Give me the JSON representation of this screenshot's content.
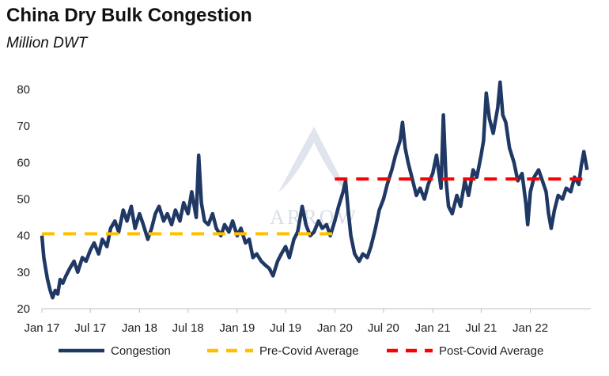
{
  "title": "China Dry Bulk Congestion",
  "subtitle": "Million DWT",
  "watermark_text": "ARROW",
  "colors": {
    "congestion": "#1f3864",
    "pre_covid": "#ffc000",
    "post_covid": "#ff0000",
    "axis": "#bfbfbf",
    "watermark": "#b7c4d6"
  },
  "chart_data": {
    "type": "line",
    "title": "China Dry Bulk Congestion",
    "subtitle": "Million DWT",
    "ylim": [
      20,
      85
    ],
    "yticks": [
      20,
      30,
      40,
      50,
      60,
      70,
      80
    ],
    "xlim": [
      "2017-01-01",
      "2022-08-15"
    ],
    "xticks": [
      {
        "date": "2017-01-01",
        "label": "Jan 17"
      },
      {
        "date": "2017-07-01",
        "label": "Jul 17"
      },
      {
        "date": "2018-01-01",
        "label": "Jan 18"
      },
      {
        "date": "2018-07-01",
        "label": "Jul 18"
      },
      {
        "date": "2019-01-01",
        "label": "Jan 19"
      },
      {
        "date": "2019-07-01",
        "label": "Jul 19"
      },
      {
        "date": "2020-01-01",
        "label": "Jan 20"
      },
      {
        "date": "2020-07-01",
        "label": "Jul 20"
      },
      {
        "date": "2021-01-01",
        "label": "Jan 21"
      },
      {
        "date": "2021-07-01",
        "label": "Jul 21"
      },
      {
        "date": "2022-01-01",
        "label": "Jan 22"
      }
    ],
    "grid": false,
    "legend_position": "bottom",
    "series": [
      {
        "name": "Congestion",
        "style": "solid",
        "points": [
          [
            "2017-01-01",
            40
          ],
          [
            "2017-01-08",
            34
          ],
          [
            "2017-01-15",
            31
          ],
          [
            "2017-01-22",
            28
          ],
          [
            "2017-02-01",
            25
          ],
          [
            "2017-02-10",
            23
          ],
          [
            "2017-02-20",
            25
          ],
          [
            "2017-03-01",
            24
          ],
          [
            "2017-03-10",
            28
          ],
          [
            "2017-03-20",
            27
          ],
          [
            "2017-04-01",
            29
          ],
          [
            "2017-04-15",
            31
          ],
          [
            "2017-05-01",
            33
          ],
          [
            "2017-05-15",
            30
          ],
          [
            "2017-06-01",
            34
          ],
          [
            "2017-06-15",
            33
          ],
          [
            "2017-07-01",
            36
          ],
          [
            "2017-07-15",
            38
          ],
          [
            "2017-08-01",
            35
          ],
          [
            "2017-08-15",
            39
          ],
          [
            "2017-09-01",
            37
          ],
          [
            "2017-09-15",
            42
          ],
          [
            "2017-10-01",
            44
          ],
          [
            "2017-10-15",
            41
          ],
          [
            "2017-11-01",
            47
          ],
          [
            "2017-11-15",
            44
          ],
          [
            "2017-12-01",
            48
          ],
          [
            "2017-12-15",
            42
          ],
          [
            "2018-01-01",
            46
          ],
          [
            "2018-01-15",
            43
          ],
          [
            "2018-02-01",
            39
          ],
          [
            "2018-02-15",
            42
          ],
          [
            "2018-03-01",
            46
          ],
          [
            "2018-03-15",
            48
          ],
          [
            "2018-04-01",
            44
          ],
          [
            "2018-04-15",
            46
          ],
          [
            "2018-05-01",
            43
          ],
          [
            "2018-05-15",
            47
          ],
          [
            "2018-06-01",
            44
          ],
          [
            "2018-06-15",
            49
          ],
          [
            "2018-07-01",
            46
          ],
          [
            "2018-07-15",
            52
          ],
          [
            "2018-08-01",
            45
          ],
          [
            "2018-08-10",
            62
          ],
          [
            "2018-08-20",
            49
          ],
          [
            "2018-09-01",
            44
          ],
          [
            "2018-09-15",
            43
          ],
          [
            "2018-10-01",
            46
          ],
          [
            "2018-10-15",
            42
          ],
          [
            "2018-11-01",
            40
          ],
          [
            "2018-11-15",
            43
          ],
          [
            "2018-12-01",
            41
          ],
          [
            "2018-12-15",
            44
          ],
          [
            "2019-01-01",
            40
          ],
          [
            "2019-01-15",
            42
          ],
          [
            "2019-02-01",
            38
          ],
          [
            "2019-02-15",
            39
          ],
          [
            "2019-03-01",
            34
          ],
          [
            "2019-03-15",
            35
          ],
          [
            "2019-04-01",
            33
          ],
          [
            "2019-04-15",
            32
          ],
          [
            "2019-05-01",
            31
          ],
          [
            "2019-05-15",
            29
          ],
          [
            "2019-06-01",
            33
          ],
          [
            "2019-06-15",
            35
          ],
          [
            "2019-07-01",
            37
          ],
          [
            "2019-07-15",
            34
          ],
          [
            "2019-08-01",
            39
          ],
          [
            "2019-08-15",
            41
          ],
          [
            "2019-09-01",
            48
          ],
          [
            "2019-09-15",
            43
          ],
          [
            "2019-10-01",
            40
          ],
          [
            "2019-10-15",
            41
          ],
          [
            "2019-11-01",
            44
          ],
          [
            "2019-11-15",
            42
          ],
          [
            "2019-12-01",
            43
          ],
          [
            "2019-12-15",
            40
          ],
          [
            "2020-01-01",
            44
          ],
          [
            "2020-01-15",
            48
          ],
          [
            "2020-02-01",
            52
          ],
          [
            "2020-02-10",
            55
          ],
          [
            "2020-02-20",
            47
          ],
          [
            "2020-03-01",
            40
          ],
          [
            "2020-03-15",
            35
          ],
          [
            "2020-04-01",
            33
          ],
          [
            "2020-04-15",
            35
          ],
          [
            "2020-05-01",
            34
          ],
          [
            "2020-05-15",
            37
          ],
          [
            "2020-06-01",
            42
          ],
          [
            "2020-06-15",
            47
          ],
          [
            "2020-07-01",
            50
          ],
          [
            "2020-07-15",
            54
          ],
          [
            "2020-08-01",
            58
          ],
          [
            "2020-08-15",
            62
          ],
          [
            "2020-09-01",
            66
          ],
          [
            "2020-09-10",
            71
          ],
          [
            "2020-09-20",
            64
          ],
          [
            "2020-10-01",
            60
          ],
          [
            "2020-10-15",
            56
          ],
          [
            "2020-11-01",
            51
          ],
          [
            "2020-11-15",
            53
          ],
          [
            "2020-12-01",
            50
          ],
          [
            "2020-12-15",
            54
          ],
          [
            "2021-01-01",
            57
          ],
          [
            "2021-01-15",
            62
          ],
          [
            "2021-02-01",
            53
          ],
          [
            "2021-02-10",
            73
          ],
          [
            "2021-02-20",
            55
          ],
          [
            "2021-03-01",
            48
          ],
          [
            "2021-03-15",
            46
          ],
          [
            "2021-04-01",
            51
          ],
          [
            "2021-04-15",
            48
          ],
          [
            "2021-05-01",
            55
          ],
          [
            "2021-05-15",
            51
          ],
          [
            "2021-06-01",
            58
          ],
          [
            "2021-06-15",
            56
          ],
          [
            "2021-07-01",
            62
          ],
          [
            "2021-07-10",
            66
          ],
          [
            "2021-07-20",
            79
          ],
          [
            "2021-08-01",
            72
          ],
          [
            "2021-08-15",
            68
          ],
          [
            "2021-09-01",
            75
          ],
          [
            "2021-09-10",
            82
          ],
          [
            "2021-09-20",
            73
          ],
          [
            "2021-10-01",
            71
          ],
          [
            "2021-10-15",
            64
          ],
          [
            "2021-11-01",
            60
          ],
          [
            "2021-11-15",
            55
          ],
          [
            "2021-12-01",
            57
          ],
          [
            "2021-12-15",
            49
          ],
          [
            "2021-12-22",
            43
          ],
          [
            "2022-01-01",
            52
          ],
          [
            "2022-01-15",
            56
          ],
          [
            "2022-02-01",
            58
          ],
          [
            "2022-02-15",
            55
          ],
          [
            "2022-03-01",
            52
          ],
          [
            "2022-03-10",
            46
          ],
          [
            "2022-03-20",
            42
          ],
          [
            "2022-04-01",
            47
          ],
          [
            "2022-04-15",
            51
          ],
          [
            "2022-05-01",
            50
          ],
          [
            "2022-05-15",
            53
          ],
          [
            "2022-06-01",
            52
          ],
          [
            "2022-06-15",
            56
          ],
          [
            "2022-07-01",
            54
          ],
          [
            "2022-07-10",
            59
          ],
          [
            "2022-07-20",
            63
          ],
          [
            "2022-08-01",
            58
          ]
        ]
      },
      {
        "name": "Pre-Covid Average",
        "style": "dashed",
        "points": [
          [
            "2017-01-01",
            40.5
          ],
          [
            "2020-01-01",
            40.5
          ]
        ]
      },
      {
        "name": "Post-Covid Average",
        "style": "dashed",
        "points": [
          [
            "2020-01-01",
            55.5
          ],
          [
            "2022-08-15",
            55.5
          ]
        ]
      }
    ]
  }
}
